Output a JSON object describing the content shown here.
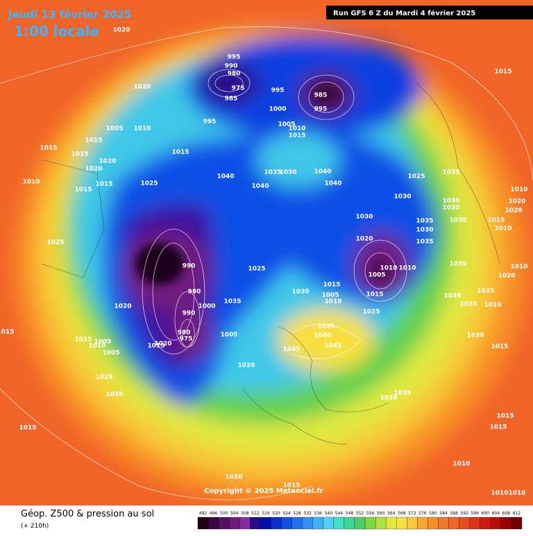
{
  "header": {
    "date": "Jeudi 13 février 2025",
    "time": "1:00 locale",
    "run": "Run GFS 6 Z du Mardi 4 février 2025"
  },
  "copyright": "Copyright © 2025 Meteociel.fr",
  "legend": {
    "title": "Géop. Z500 & pression au sol",
    "lead": "(+ 210h)",
    "scale": [
      492,
      496,
      500,
      504,
      508,
      512,
      516,
      520,
      524,
      528,
      532,
      536,
      540,
      544,
      548,
      552,
      556,
      560,
      564,
      568,
      572,
      576,
      580,
      584,
      588,
      592,
      596,
      600,
      604,
      608,
      612
    ],
    "scale_colors": [
      "#1a001a",
      "#3a0840",
      "#561060",
      "#701a80",
      "#8a2aa0",
      "#2a0a8a",
      "#0010b0",
      "#0830d0",
      "#1050e6",
      "#2070f0",
      "#3090f4",
      "#40b0f8",
      "#50d0f8",
      "#40e0c8",
      "#40d890",
      "#50d060",
      "#80d840",
      "#b0e040",
      "#e0e840",
      "#f8e040",
      "#f8c838",
      "#f8a830",
      "#f89028",
      "#f07828",
      "#f06428",
      "#e84c20",
      "#e03418",
      "#d01c10",
      "#b80c08",
      "#980404",
      "#700000"
    ]
  },
  "isobar_labels": [
    "1020",
    "1020",
    "1005",
    "1010",
    "1015",
    "1015",
    "1015",
    "1020",
    "1020",
    "1010",
    "1015",
    "1015",
    "1025",
    "1025",
    "995",
    "990",
    "980",
    "975",
    "985",
    "995",
    "995",
    "1000",
    "985",
    "995",
    "1005",
    "1010",
    "1015",
    "1015",
    "1040",
    "1035",
    "1030",
    "1040",
    "1040",
    "1040",
    "1025",
    "1030",
    "1035",
    "1015",
    "1030",
    "1020",
    "1010",
    "1005",
    "990",
    "980",
    "1000",
    "990",
    "980",
    "975",
    "1020",
    "1015",
    "1025",
    "1035",
    "1005",
    "1030",
    "1015",
    "1005",
    "1010",
    "1015",
    "1025",
    "1035",
    "1040",
    "1045",
    "1045",
    "1020",
    "1020",
    "1015",
    "1005",
    "1010",
    "1005",
    "1025",
    "1030",
    "1015",
    "1020",
    "1015",
    "1030",
    "1035",
    "1030",
    "1015",
    "1010",
    "1015",
    "1015",
    "1010",
    "1010",
    "1015",
    "1030",
    "1025",
    "1010",
    "1010",
    "1020",
    "1035",
    "1030",
    "1030",
    "1030",
    "1035",
    "1030",
    "1035",
    "1010",
    "1020",
    "1020",
    "1015",
    "1010",
    "1010",
    "1035"
  ]
}
